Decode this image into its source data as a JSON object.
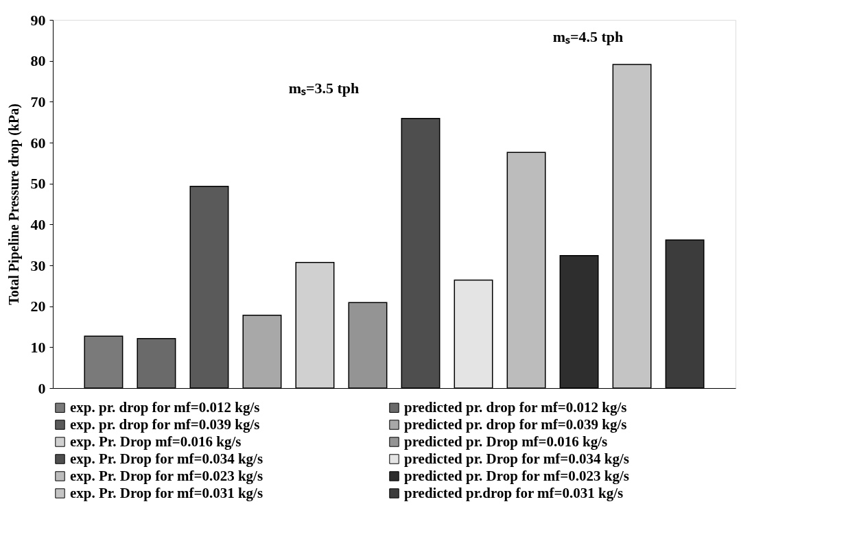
{
  "chart_data": {
    "type": "bar",
    "ylabel": "Total Pipeline Pressure drop (kPa)",
    "categories": [
      null,
      null,
      null,
      null,
      null,
      null,
      null,
      null,
      null,
      null,
      null,
      null
    ],
    "ylim": [
      0,
      90
    ],
    "yticks": [
      0,
      10,
      20,
      30,
      40,
      50,
      60,
      70,
      80,
      90
    ],
    "legend": "bottom",
    "annotations": [
      "mₛ=3.5 tph",
      "mₛ=4.5 tph"
    ],
    "series": [
      {
        "name": "exp. pr. drop for mf=0.012 kg/s",
        "color": "#7a7a7a",
        "values": [
          12.7,
          null,
          null,
          null,
          null,
          null,
          null,
          null,
          null,
          null,
          null,
          null
        ]
      },
      {
        "name": "predicted pr. drop for mf=0.012 kg/s",
        "color": "#6a6a6a",
        "values": [
          null,
          12.1,
          null,
          null,
          null,
          null,
          null,
          null,
          null,
          null,
          null,
          null
        ]
      },
      {
        "name": "exp. pr. drop for mf=0.039 kg/s",
        "color": "#5a5a5a",
        "values": [
          null,
          null,
          49.3,
          null,
          null,
          null,
          null,
          null,
          null,
          null,
          null,
          null
        ]
      },
      {
        "name": "predicted pr. drop for mf=0.039 kg/s",
        "color": "#a8a8a8",
        "values": [
          null,
          null,
          null,
          17.8,
          null,
          null,
          null,
          null,
          null,
          null,
          null,
          null
        ]
      },
      {
        "name": "exp. Pr. Drop mf=0.016 kg/s",
        "color": "#d0d0d0",
        "values": [
          null,
          null,
          null,
          null,
          30.7,
          null,
          null,
          null,
          null,
          null,
          null,
          null
        ]
      },
      {
        "name": "predicted pr. Drop mf=0.016 kg/s",
        "color": "#949494",
        "values": [
          null,
          null,
          null,
          null,
          null,
          20.9,
          null,
          null,
          null,
          null,
          null,
          null
        ]
      },
      {
        "name": "exp. Pr. Drop for mf=0.034 kg/s",
        "color": "#4e4e4e",
        "values": [
          null,
          null,
          null,
          null,
          null,
          null,
          65.9,
          null,
          null,
          null,
          null,
          null
        ]
      },
      {
        "name": "predicted pr. Drop for mf=0.034 kg/s",
        "color": "#e4e4e4",
        "values": [
          null,
          null,
          null,
          null,
          null,
          null,
          null,
          26.4,
          null,
          null,
          null,
          null
        ]
      },
      {
        "name": "exp. Pr. Drop for mf=0.023 kg/s",
        "color": "#bcbcbc",
        "values": [
          null,
          null,
          null,
          null,
          null,
          null,
          null,
          null,
          57.6,
          null,
          null,
          null
        ]
      },
      {
        "name": "predicted pr. Drop for mf=0.023 kg/s",
        "color": "#2e2e2e",
        "values": [
          null,
          null,
          null,
          null,
          null,
          null,
          null,
          null,
          null,
          32.4,
          null,
          null
        ]
      },
      {
        "name": "exp. Pr. Drop for mf=0.031 kg/s",
        "color": "#c4c4c4",
        "values": [
          null,
          null,
          null,
          null,
          null,
          null,
          null,
          null,
          null,
          null,
          79.1,
          null
        ]
      },
      {
        "name": "predicted pr.drop for mf=0.031 kg/s",
        "color": "#3c3c3c",
        "values": [
          null,
          null,
          null,
          null,
          null,
          null,
          null,
          null,
          null,
          null,
          null,
          36.2
        ]
      }
    ]
  }
}
